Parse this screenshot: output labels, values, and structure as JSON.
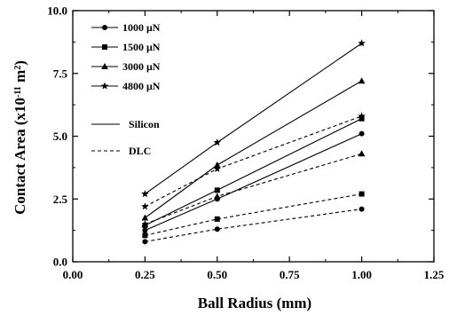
{
  "chart_data": {
    "type": "line",
    "xlabel": "Ball Radius (mm)",
    "ylabel_parts": [
      "Contact Area (x10",
      "-11",
      " m",
      "2",
      ")"
    ],
    "xlim": [
      0.0,
      1.25
    ],
    "ylim": [
      0.0,
      10.0
    ],
    "x_ticks": [
      "0.00",
      "0.25",
      "0.50",
      "0.75",
      "1.00",
      "1.25"
    ],
    "y_ticks": [
      "0.0",
      "2.5",
      "5.0",
      "7.5",
      "10.0"
    ],
    "x_tick_values": [
      0.0,
      0.25,
      0.5,
      0.75,
      1.0,
      1.25
    ],
    "y_tick_values": [
      0.0,
      2.5,
      5.0,
      7.5,
      10.0
    ],
    "grid": false,
    "legend_position": "top-left",
    "legend_loads": [
      {
        "label": "1000 μN",
        "marker": "circle"
      },
      {
        "label": "1500 μN",
        "marker": "square"
      },
      {
        "label": "3000 μN",
        "marker": "triangle"
      },
      {
        "label": "4800 μN",
        "marker": "star"
      }
    ],
    "legend_materials": [
      {
        "label": "Silicon",
        "dash": "solid"
      },
      {
        "label": "DLC",
        "dash": "dashed"
      }
    ],
    "x": [
      0.25,
      0.5,
      1.0
    ],
    "series": [
      {
        "material": "Silicon",
        "load": "1000 μN",
        "marker": "circle",
        "dash": "solid",
        "values": [
          1.25,
          2.5,
          5.1
        ]
      },
      {
        "material": "Silicon",
        "load": "1500 μN",
        "marker": "square",
        "dash": "solid",
        "values": [
          1.45,
          2.85,
          5.7
        ]
      },
      {
        "material": "Silicon",
        "load": "3000 μN",
        "marker": "triangle",
        "dash": "solid",
        "values": [
          1.75,
          3.85,
          7.2
        ]
      },
      {
        "material": "Silicon",
        "load": "4800 μN",
        "marker": "star",
        "dash": "solid",
        "values": [
          2.7,
          4.75,
          8.7
        ]
      },
      {
        "material": "DLC",
        "load": "1000 μN",
        "marker": "circle",
        "dash": "dashed",
        "values": [
          0.8,
          1.3,
          2.1
        ]
      },
      {
        "material": "DLC",
        "load": "1500 μN",
        "marker": "square",
        "dash": "dashed",
        "values": [
          1.05,
          1.7,
          2.7
        ]
      },
      {
        "material": "DLC",
        "load": "3000 μN",
        "marker": "triangle",
        "dash": "dashed",
        "values": [
          1.5,
          2.6,
          4.3
        ]
      },
      {
        "material": "DLC",
        "load": "4800 μN",
        "marker": "star",
        "dash": "dashed",
        "values": [
          2.2,
          3.7,
          5.8
        ]
      }
    ]
  }
}
